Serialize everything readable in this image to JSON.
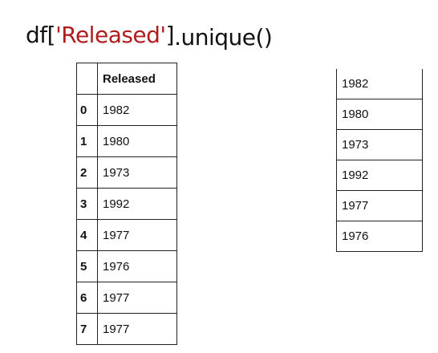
{
  "code": {
    "prefix": "df[",
    "string_arg": "'Released'",
    "close_bracket": "]",
    "method": ".unique()"
  },
  "dataframe": {
    "column_header": "Released",
    "rows": [
      {
        "index": "0",
        "value": "1982"
      },
      {
        "index": "1",
        "value": "1980"
      },
      {
        "index": "2",
        "value": "1973"
      },
      {
        "index": "3",
        "value": "1992"
      },
      {
        "index": "4",
        "value": "1977"
      },
      {
        "index": "5",
        "value": "1976"
      },
      {
        "index": "6",
        "value": "1977"
      },
      {
        "index": "7",
        "value": "1977"
      }
    ]
  },
  "unique_result": [
    "1982",
    "1980",
    "1973",
    "1992",
    "1977",
    "1976"
  ],
  "colors": {
    "string_literal": "#b01c1c",
    "text": "#111111",
    "border": "#222222"
  }
}
